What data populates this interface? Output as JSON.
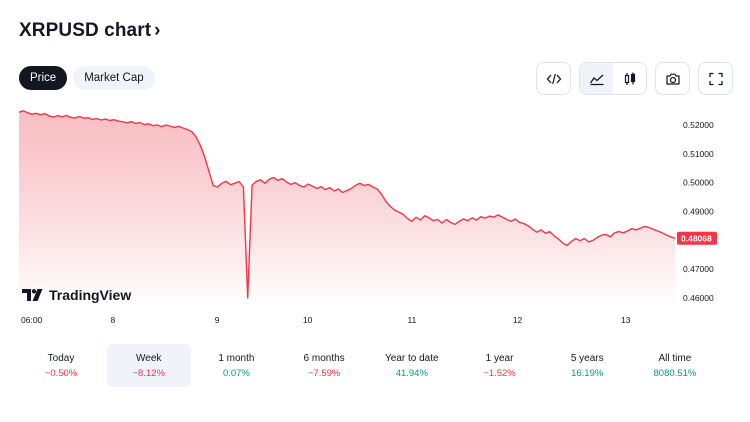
{
  "title": "XRPUSD chart",
  "title_chevron": "›",
  "tabs": [
    {
      "label": "Price",
      "active": true
    },
    {
      "label": "Market Cap",
      "active": false
    }
  ],
  "toolbar": {
    "icons": [
      "embed-code-icon",
      "area-chart-icon",
      "candles-icon",
      "camera-icon",
      "fullscreen-icon"
    ]
  },
  "chart_data": {
    "type": "area",
    "symbol": "XRPUSD",
    "xlabel": "",
    "ylabel": "",
    "x_ticks": [
      "06:00",
      "8",
      "9",
      "10",
      "11",
      "12",
      "13"
    ],
    "y_ticks": [
      "0.52000",
      "0.51000",
      "0.50000",
      "0.49000",
      "0.48068",
      "0.47000",
      "0.46000"
    ],
    "ylim": [
      0.4575,
      0.527
    ],
    "last_price": "0.48068",
    "last_price_value": 0.48068,
    "colors": {
      "line": "#f23645",
      "fill_top": "#f7a8af",
      "fill_bottom": "#ffffff",
      "tag": "#f23645"
    },
    "series": [
      {
        "values": [
          0.5245,
          0.525,
          0.5243,
          0.5238,
          0.5241,
          0.5236,
          0.524,
          0.5232,
          0.5228,
          0.5233,
          0.5229,
          0.5234,
          0.5227,
          0.5225,
          0.523,
          0.5224,
          0.5226,
          0.522,
          0.5223,
          0.5218,
          0.5221,
          0.5216,
          0.5219,
          0.5214,
          0.5212,
          0.5208,
          0.5212,
          0.5206,
          0.5209,
          0.5202,
          0.5205,
          0.5198,
          0.5201,
          0.5195,
          0.52,
          0.5197,
          0.5192,
          0.5196,
          0.519,
          0.5185,
          0.5178,
          0.516,
          0.513,
          0.509,
          0.504,
          0.499,
          0.4985,
          0.4998,
          0.5005,
          0.4993,
          0.4998,
          0.5004,
          0.4985,
          0.46,
          0.4992,
          0.5005,
          0.501,
          0.4998,
          0.5012,
          0.5018,
          0.5008,
          0.5014,
          0.5002,
          0.4994,
          0.5,
          0.499,
          0.4985,
          0.4995,
          0.4988,
          0.498,
          0.4986,
          0.4976,
          0.4983,
          0.4971,
          0.4978,
          0.4966,
          0.4973,
          0.498,
          0.4991,
          0.4998,
          0.499,
          0.4994,
          0.4985,
          0.4978,
          0.496,
          0.4935,
          0.4918,
          0.4905,
          0.4898,
          0.489,
          0.4876,
          0.4866,
          0.488,
          0.487,
          0.4885,
          0.4878,
          0.4868,
          0.4872,
          0.486,
          0.4872,
          0.4862,
          0.4855,
          0.4866,
          0.4874,
          0.4868,
          0.4878,
          0.487,
          0.4882,
          0.4877,
          0.4884,
          0.488,
          0.4888,
          0.488,
          0.4872,
          0.4866,
          0.4874,
          0.4862,
          0.4858,
          0.485,
          0.4838,
          0.4828,
          0.4836,
          0.4824,
          0.483,
          0.4815,
          0.4804,
          0.479,
          0.4782,
          0.4796,
          0.4806,
          0.4798,
          0.4806,
          0.4794,
          0.48,
          0.481,
          0.4818,
          0.482,
          0.4812,
          0.4826,
          0.483,
          0.4826,
          0.4832,
          0.484,
          0.4836,
          0.4842,
          0.4848,
          0.4844,
          0.4838,
          0.4832,
          0.4826,
          0.4818,
          0.4812,
          0.48068
        ]
      }
    ]
  },
  "watermark": "TradingView",
  "periods": [
    {
      "label": "Today",
      "value": "−0.50%",
      "trend": "neg",
      "active": false
    },
    {
      "label": "Week",
      "value": "−8.12%",
      "trend": "neg",
      "active": true
    },
    {
      "label": "1 month",
      "value": "0.07%",
      "trend": "pos",
      "active": false
    },
    {
      "label": "6 months",
      "value": "−7.59%",
      "trend": "neg",
      "active": false
    },
    {
      "label": "Year to date",
      "value": "41.94%",
      "trend": "pos",
      "active": false
    },
    {
      "label": "1 year",
      "value": "−1.52%",
      "trend": "neg",
      "active": false
    },
    {
      "label": "5 years",
      "value": "16.19%",
      "trend": "pos",
      "active": false
    },
    {
      "label": "All time",
      "value": "8080.51%",
      "trend": "pos",
      "active": false
    }
  ]
}
